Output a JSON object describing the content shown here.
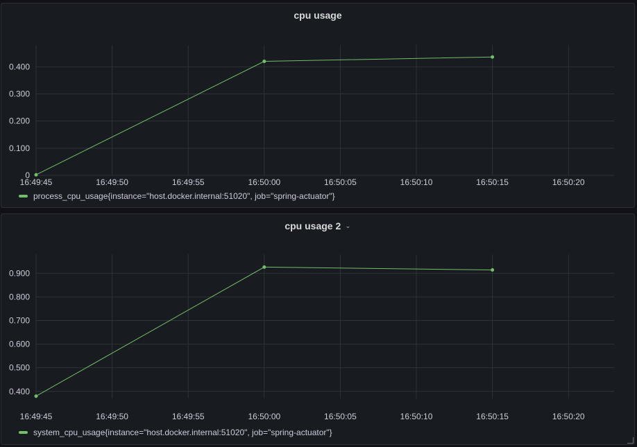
{
  "colors": {
    "series": "#73bf69",
    "grid": "#2f3238",
    "tick": "#ccccdc"
  },
  "panels": [
    {
      "title": "cpu usage",
      "has_menu": false,
      "legend": "process_cpu_usage{instance=\"host.docker.internal:51020\", job=\"spring-actuator\"}"
    },
    {
      "title": "cpu usage 2",
      "has_menu": true,
      "legend": "system_cpu_usage{instance=\"host.docker.internal:51020\", job=\"spring-actuator\"}"
    }
  ],
  "chart_data": [
    {
      "type": "line",
      "title": "cpu usage",
      "x_ticks": [
        "16:49:45",
        "16:49:50",
        "16:49:55",
        "16:50:00",
        "16:50:05",
        "16:50:10",
        "16:50:15",
        "16:50:20"
      ],
      "y_ticks": [
        "0",
        "0.100",
        "0.200",
        "0.300",
        "0.400"
      ],
      "y_tick_values": [
        0,
        0.1,
        0.2,
        0.3,
        0.4
      ],
      "xlim": [
        "16:49:45",
        "16:50:23"
      ],
      "ylim": [
        0,
        0.48
      ],
      "grid": true,
      "legend_position": "bottom",
      "series": [
        {
          "name": "process_cpu_usage{instance=\"host.docker.internal:51020\", job=\"spring-actuator\"}",
          "x": [
            "16:49:45",
            "16:50:00",
            "16:50:15"
          ],
          "y": [
            0.002,
            0.42,
            0.436
          ]
        }
      ]
    },
    {
      "type": "line",
      "title": "cpu usage 2",
      "x_ticks": [
        "16:49:45",
        "16:49:50",
        "16:49:55",
        "16:50:00",
        "16:50:05",
        "16:50:10",
        "16:50:15",
        "16:50:20"
      ],
      "y_ticks": [
        "0.400",
        "0.500",
        "0.600",
        "0.700",
        "0.800",
        "0.900"
      ],
      "y_tick_values": [
        0.4,
        0.5,
        0.6,
        0.7,
        0.8,
        0.9
      ],
      "xlim": [
        "16:49:45",
        "16:50:23"
      ],
      "ylim": [
        0.37,
        0.98
      ],
      "grid": true,
      "legend_position": "bottom",
      "series": [
        {
          "name": "system_cpu_usage{instance=\"host.docker.internal:51020\", job=\"spring-actuator\"}",
          "x": [
            "16:49:45",
            "16:50:00",
            "16:50:15"
          ],
          "y": [
            0.38,
            0.926,
            0.914
          ]
        }
      ]
    }
  ]
}
